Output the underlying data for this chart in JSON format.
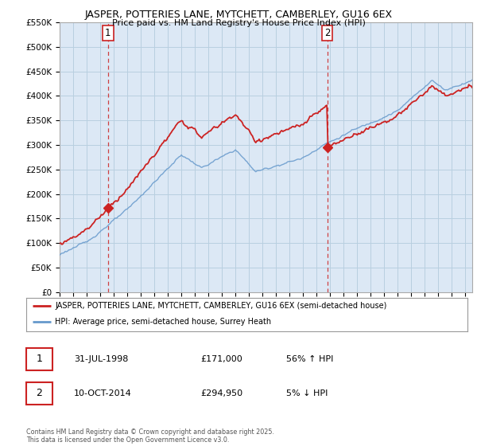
{
  "title1": "JASPER, POTTERIES LANE, MYTCHETT, CAMBERLEY, GU16 6EX",
  "title2": "Price paid vs. HM Land Registry's House Price Index (HPI)",
  "legend1": "JASPER, POTTERIES LANE, MYTCHETT, CAMBERLEY, GU16 6EX (semi-detached house)",
  "legend2": "HPI: Average price, semi-detached house, Surrey Heath",
  "sale1_date": "31-JUL-1998",
  "sale1_price": "£171,000",
  "sale1_hpi": "56% ↑ HPI",
  "sale2_date": "10-OCT-2014",
  "sale2_price": "£294,950",
  "sale2_hpi": "5% ↓ HPI",
  "copyright": "Contains HM Land Registry data © Crown copyright and database right 2025.\nThis data is licensed under the Open Government Licence v3.0.",
  "sale1_year": 1998.58,
  "sale1_value": 171000,
  "sale2_year": 2014.78,
  "sale2_value": 294950,
  "hpi_color": "#6699cc",
  "price_color": "#cc2222",
  "vline_color": "#cc2222",
  "background_color": "#ffffff",
  "chart_bg_color": "#dce8f5",
  "grid_color": "#b8cfe0",
  "ylim": [
    0,
    550000
  ],
  "xlim_start": 1995,
  "xlim_end": 2025.5
}
